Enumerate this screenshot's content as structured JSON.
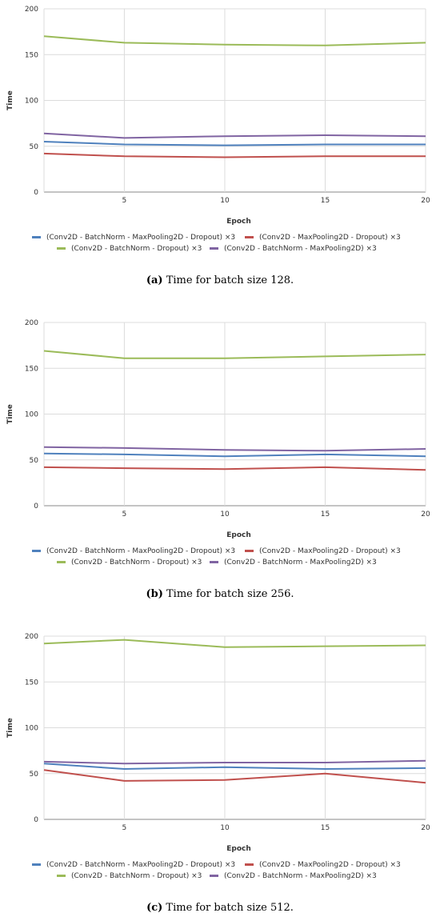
{
  "chart_data": [
    {
      "type": "line",
      "x": [
        1,
        5,
        10,
        15,
        20
      ],
      "xticks": [
        5,
        10,
        15,
        20
      ],
      "yticks": [
        0,
        50,
        100,
        150,
        200
      ],
      "ylim": [
        0,
        200
      ],
      "xlabel": "Epoch",
      "ylabel": "Time",
      "grid": true,
      "legend_placement": "bottom",
      "series": [
        {
          "name": "(Conv2D - BatchNorm - MaxPooling2D - Dropout) ×3",
          "color": "#4f81bd",
          "values": [
            55,
            52,
            51,
            52,
            52
          ]
        },
        {
          "name": "(Conv2D - MaxPooling2D - Dropout) ×3",
          "color": "#c0504d",
          "values": [
            42,
            39,
            38,
            39,
            39
          ]
        },
        {
          "name": "(Conv2D - BatchNorm - Dropout) ×3",
          "color": "#9bbb59",
          "values": [
            170,
            163,
            161,
            160,
            163
          ]
        },
        {
          "name": "(Conv2D - BatchNorm - MaxPooling2D) ×3",
          "color": "#8064a2",
          "values": [
            64,
            59,
            61,
            62,
            61
          ]
        }
      ],
      "caption_label": "(a)",
      "caption_text": "Time for batch size 128."
    },
    {
      "type": "line",
      "x": [
        1,
        5,
        10,
        15,
        20
      ],
      "xticks": [
        5,
        10,
        15,
        20
      ],
      "yticks": [
        0,
        50,
        100,
        150,
        200
      ],
      "ylim": [
        0,
        200
      ],
      "xlabel": "Epoch",
      "ylabel": "Time",
      "grid": true,
      "legend_placement": "bottom",
      "series": [
        {
          "name": "(Conv2D - BatchNorm - MaxPooling2D - Dropout) ×3",
          "color": "#4f81bd",
          "values": [
            57,
            56,
            54,
            56,
            54
          ]
        },
        {
          "name": "(Conv2D - MaxPooling2D - Dropout) ×3",
          "color": "#c0504d",
          "values": [
            42,
            41,
            40,
            42,
            39
          ]
        },
        {
          "name": "(Conv2D - BatchNorm - Dropout) ×3",
          "color": "#9bbb59",
          "values": [
            169,
            161,
            161,
            163,
            165
          ]
        },
        {
          "name": "(Conv2D - BatchNorm - MaxPooling2D) ×3",
          "color": "#8064a2",
          "values": [
            64,
            63,
            61,
            60,
            62
          ]
        }
      ],
      "caption_label": "(b)",
      "caption_text": "Time for batch size 256."
    },
    {
      "type": "line",
      "x": [
        1,
        5,
        10,
        15,
        20
      ],
      "xticks": [
        5,
        10,
        15,
        20
      ],
      "yticks": [
        0,
        50,
        100,
        150,
        200
      ],
      "ylim": [
        0,
        200
      ],
      "xlabel": "Epoch",
      "ylabel": "Time",
      "grid": true,
      "legend_placement": "bottom",
      "series": [
        {
          "name": "(Conv2D - BatchNorm - MaxPooling2D - Dropout) ×3",
          "color": "#4f81bd",
          "values": [
            61,
            55,
            57,
            55,
            56
          ]
        },
        {
          "name": "(Conv2D - MaxPooling2D - Dropout) ×3",
          "color": "#c0504d",
          "values": [
            54,
            42,
            43,
            50,
            40
          ]
        },
        {
          "name": "(Conv2D - BatchNorm - Dropout) ×3",
          "color": "#9bbb59",
          "values": [
            192,
            196,
            188,
            189,
            190
          ]
        },
        {
          "name": "(Conv2D - BatchNorm - MaxPooling2D) ×3",
          "color": "#8064a2",
          "values": [
            63,
            61,
            62,
            62,
            64
          ]
        }
      ],
      "caption_label": "(c)",
      "caption_text": "Time for batch size 512."
    }
  ]
}
